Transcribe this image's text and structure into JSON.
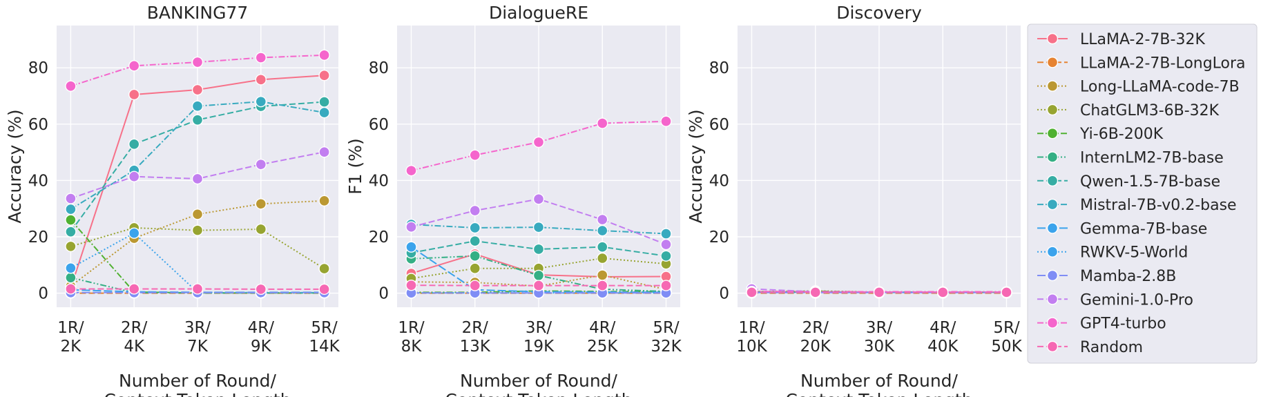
{
  "chart_data": [
    {
      "type": "line",
      "title": "BANKING77",
      "xlabel": "Number of Round/\nContext Token Length",
      "ylabel": "Accuracy (%)",
      "categories": [
        "1R/\n2K",
        "2R/\n4K",
        "3R/\n7K",
        "4R/\n9K",
        "5R/\n14K"
      ],
      "ylim": [
        -5,
        95
      ],
      "yticks": [
        0,
        20,
        40,
        60,
        80
      ],
      "grid": true,
      "series": [
        {
          "name": "LLaMA-2-7B-32K",
          "values": [
            1.8,
            70.5,
            72.2,
            75.8,
            77.3
          ]
        },
        {
          "name": "LLaMA-2-7B-LongLora",
          "values": [
            0.0,
            0.0,
            0.0,
            0.0,
            0.0
          ]
        },
        {
          "name": "Long-LLaMA-code-7B",
          "values": [
            2.5,
            19.5,
            28.0,
            31.7,
            32.8
          ]
        },
        {
          "name": "ChatGLM3-6B-32K",
          "values": [
            16.6,
            23.2,
            22.3,
            22.7,
            8.7
          ]
        },
        {
          "name": "Yi-6B-200K",
          "values": [
            26.0,
            0.4,
            0.1,
            0.1,
            0.1
          ]
        },
        {
          "name": "InternLM2-7B-base",
          "values": [
            5.5,
            0.2,
            0.1,
            0.1,
            0.1
          ]
        },
        {
          "name": "Qwen-1.5-7B-base",
          "values": [
            21.8,
            52.9,
            61.5,
            66.3,
            67.9
          ]
        },
        {
          "name": "Mistral-7B-v0.2-base",
          "values": [
            29.8,
            43.6,
            66.4,
            68.0,
            64.1
          ]
        },
        {
          "name": "Gemma-7B-base",
          "values": [
            1.2,
            0.5,
            0.3,
            0.3,
            0.3
          ]
        },
        {
          "name": "RWKV-5-World",
          "values": [
            8.9,
            21.3,
            0.3,
            0.2,
            0.2
          ]
        },
        {
          "name": "Mamba-2.8B",
          "values": [
            0.2,
            0.2,
            0.2,
            0.2,
            0.2
          ]
        },
        {
          "name": "Gemini-1.0-Pro",
          "values": [
            33.6,
            41.4,
            40.6,
            45.7,
            50.1
          ]
        },
        {
          "name": "GPT4-turbo",
          "values": [
            73.5,
            80.7,
            82.0,
            83.6,
            84.5
          ]
        },
        {
          "name": "Random",
          "values": [
            1.5,
            1.5,
            1.5,
            1.4,
            1.4
          ]
        }
      ]
    },
    {
      "type": "line",
      "title": "DialogueRE",
      "xlabel": "Number of Round/\nContext Token Length",
      "ylabel": "F1 (%)",
      "categories": [
        "1R/\n8K",
        "2R/\n13K",
        "3R/\n19K",
        "4R/\n25K",
        "5R/\n32K"
      ],
      "ylim": [
        -5,
        95
      ],
      "yticks": [
        0,
        20,
        40,
        60,
        80
      ],
      "grid": true,
      "series": [
        {
          "name": "LLaMA-2-7B-32K",
          "values": [
            7.0,
            13.9,
            6.5,
            5.8,
            5.9
          ]
        },
        {
          "name": "LLaMA-2-7B-LongLora",
          "values": [
            0.0,
            0.0,
            0.0,
            0.0,
            0.0
          ]
        },
        {
          "name": "Long-LLaMA-code-7B",
          "values": [
            4.0,
            3.8,
            2.5,
            6.4,
            1.3
          ]
        },
        {
          "name": "ChatGLM3-6B-32K",
          "values": [
            5.2,
            8.8,
            8.8,
            12.4,
            10.4
          ]
        },
        {
          "name": "Yi-6B-200K",
          "values": [
            0.3,
            0.3,
            0.8,
            0.6,
            0.5
          ]
        },
        {
          "name": "InternLM2-7B-base",
          "values": [
            12.2,
            13.2,
            6.3,
            1.4,
            0.6
          ]
        },
        {
          "name": "Qwen-1.5-7B-base",
          "values": [
            14.3,
            18.5,
            15.6,
            16.4,
            13.2
          ]
        },
        {
          "name": "Mistral-7B-v0.2-base",
          "values": [
            24.4,
            23.2,
            23.4,
            22.2,
            21.1
          ]
        },
        {
          "name": "Gemma-7B-base",
          "values": [
            16.4,
            1.2,
            0.5,
            0.4,
            0.3
          ]
        },
        {
          "name": "RWKV-5-World",
          "values": [
            0.1,
            0.1,
            0.1,
            0.1,
            0.1
          ]
        },
        {
          "name": "Mamba-2.8B",
          "values": [
            0.1,
            0.1,
            0.1,
            0.1,
            0.1
          ]
        },
        {
          "name": "Gemini-1.0-Pro",
          "values": [
            23.5,
            29.3,
            33.4,
            26.1,
            17.3
          ]
        },
        {
          "name": "GPT4-turbo",
          "values": [
            43.5,
            49.0,
            53.6,
            60.3,
            61.0
          ]
        },
        {
          "name": "Random",
          "values": [
            2.8,
            2.7,
            2.7,
            2.7,
            2.7
          ]
        }
      ]
    },
    {
      "type": "line",
      "title": "Discovery",
      "xlabel": "Number of Round/\nContext Token Length",
      "ylabel": "Accuracy (%)",
      "categories": [
        "1R/\n10K",
        "2R/\n20K",
        "3R/\n30K",
        "4R/\n40K",
        "5R/\n50K"
      ],
      "ylim": [
        -5,
        95
      ],
      "yticks": [
        0,
        20,
        40,
        60,
        80
      ],
      "grid": true,
      "series": [
        {
          "name": "LLaMA-2-7B-32K",
          "values": [
            0.5,
            0.4,
            0.3,
            0.3,
            0.3
          ]
        },
        {
          "name": "LLaMA-2-7B-LongLora",
          "values": [
            0.0,
            0.0,
            0.0,
            0.0,
            0.0
          ]
        },
        {
          "name": "Long-LLaMA-code-7B",
          "values": [
            0.4,
            0.4,
            0.3,
            0.3,
            0.3
          ]
        },
        {
          "name": "ChatGLM3-6B-32K",
          "values": [
            0.5,
            0.8,
            0.4,
            0.4,
            0.3
          ]
        },
        {
          "name": "Yi-6B-200K",
          "values": [
            0.4,
            0.7,
            0.4,
            0.3,
            0.3
          ]
        },
        {
          "name": "InternLM2-7B-base",
          "values": [
            0.3,
            0.3,
            0.3,
            0.3,
            0.3
          ]
        },
        {
          "name": "Qwen-1.5-7B-base",
          "values": [
            0.4,
            0.4,
            0.3,
            0.3,
            0.3
          ]
        },
        {
          "name": "Mistral-7B-v0.2-base",
          "values": [
            0.4,
            0.3,
            0.3,
            0.3,
            0.3
          ]
        },
        {
          "name": "Gemma-7B-base",
          "values": [
            0.3,
            0.3,
            0.3,
            0.3,
            0.3
          ]
        },
        {
          "name": "RWKV-5-World",
          "values": [
            0.2,
            0.2,
            0.2,
            0.2,
            0.2
          ]
        },
        {
          "name": "Mamba-2.8B",
          "values": [
            0.2,
            0.2,
            0.2,
            0.2,
            0.2
          ]
        },
        {
          "name": "Gemini-1.0-Pro",
          "values": [
            1.5,
            0.5,
            0.4,
            0.4,
            0.4
          ]
        },
        {
          "name": "GPT4-turbo",
          "values": [
            0.6,
            0.5,
            0.5,
            0.5,
            0.5
          ]
        },
        {
          "name": "Random",
          "values": [
            0.3,
            0.3,
            0.3,
            0.3,
            0.3
          ]
        }
      ]
    }
  ],
  "style": {
    "panel_bg": "#eaeaf2",
    "grid_color": "#ffffff",
    "series_colors": {
      "LLaMA-2-7B-32K": "#f77189",
      "LLaMA-2-7B-LongLora": "#e68332",
      "Long-LLaMA-code-7B": "#bb9832",
      "ChatGLM3-6B-32K": "#97a431",
      "Yi-6B-200K": "#50b131",
      "InternLM2-7B-base": "#34af84",
      "Qwen-1.5-7B-base": "#36ada4",
      "Mistral-7B-v0.2-base": "#38aabf",
      "Gemma-7B-base": "#3ba3ec",
      "RWKV-5-World": "#3ba3ec",
      "Mamba-2.8B": "#7f8df5",
      "Gemini-1.0-Pro": "#c27ef0",
      "GPT4-turbo": "#f565cc",
      "Random": "#f668b3"
    },
    "series_dash": {
      "LLaMA-2-7B-32K": "solid",
      "LLaMA-2-7B-LongLora": "dashed",
      "Long-LLaMA-code-7B": "dotted",
      "ChatGLM3-6B-32K": "dotted",
      "Yi-6B-200K": "dashdot",
      "InternLM2-7B-base": "dashdotdot",
      "Qwen-1.5-7B-base": "dashed",
      "Mistral-7B-v0.2-base": "dashdot",
      "Gemma-7B-base": "longdash",
      "RWKV-5-World": "dotted",
      "Mamba-2.8B": "longdash",
      "Gemini-1.0-Pro": "dashed",
      "GPT4-turbo": "dashdot",
      "Random": "dashed"
    },
    "legend_position": "right"
  }
}
